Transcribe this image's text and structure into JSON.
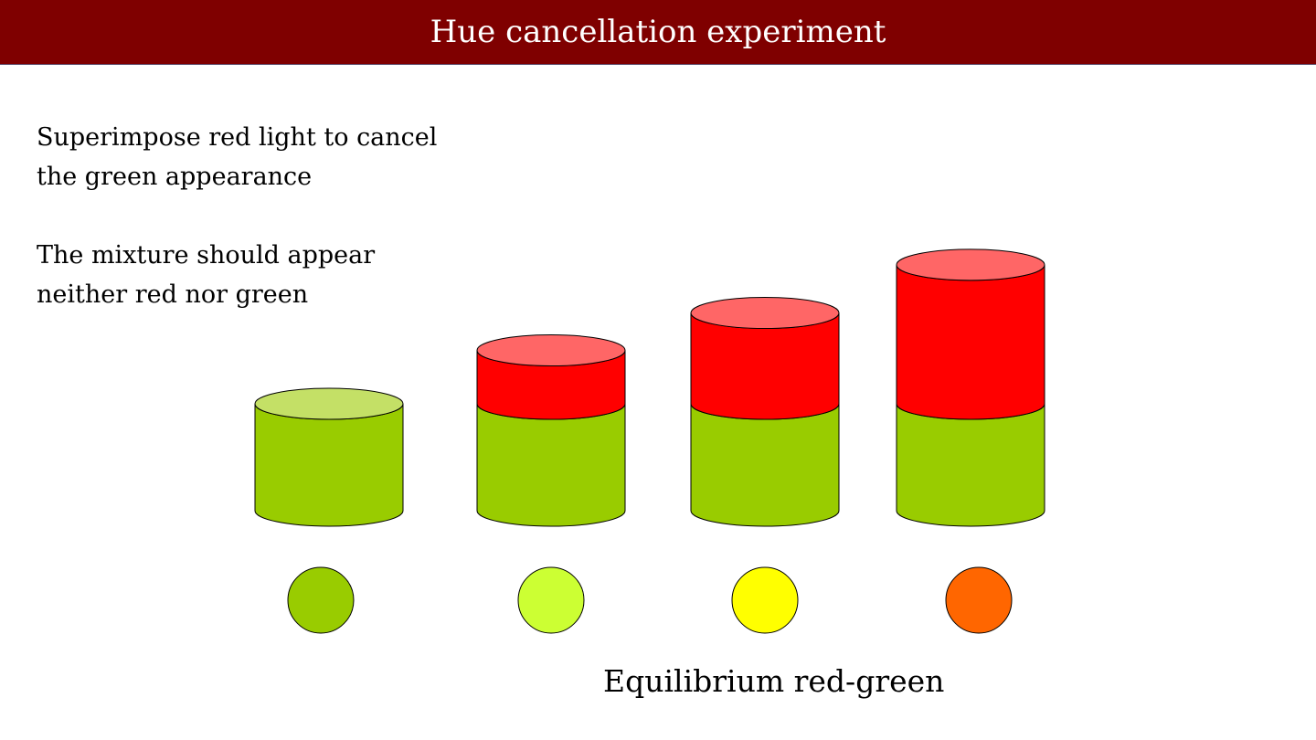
{
  "slide": {
    "title": "Hue cancellation experiment",
    "paragraphs": [
      {
        "line1": "Superimpose red light to cancel",
        "line2": "the green appearance"
      },
      {
        "line1": "The mixture should appear",
        "line2": "neither red nor green"
      }
    ],
    "caption": "Equilibrium red-green"
  },
  "colors": {
    "title_bar": "#7f0000",
    "green_body": "#99cc00",
    "green_top": "#c4e066",
    "red_body": "#ff0000",
    "red_top": "#ff6666",
    "outline": "#000000"
  },
  "cylinders": [
    {
      "name": "cylinder-1",
      "green_amount": 1,
      "red_amount": 0
    },
    {
      "name": "cylinder-2",
      "green_amount": 1,
      "red_amount": 0.5
    },
    {
      "name": "cylinder-3",
      "green_amount": 1,
      "red_amount": 0.85
    },
    {
      "name": "cylinder-4",
      "green_amount": 1,
      "red_amount": 1.3
    }
  ],
  "swatches": [
    {
      "name": "swatch-green",
      "color": "#99cc00"
    },
    {
      "name": "swatch-yellow-green",
      "color": "#ccff33"
    },
    {
      "name": "swatch-yellow",
      "color": "#ffff00"
    },
    {
      "name": "swatch-orange",
      "color": "#ff6600"
    }
  ]
}
